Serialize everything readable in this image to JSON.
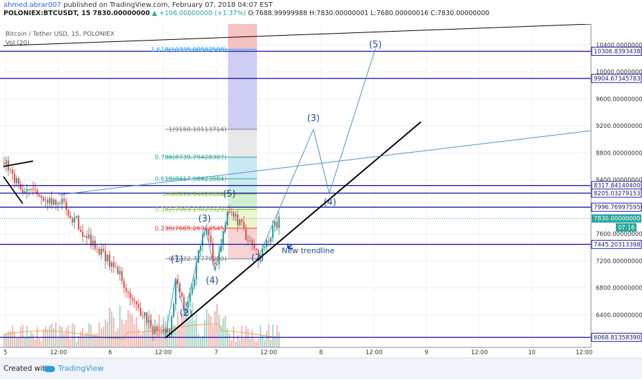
{
  "header": {
    "user": "ahmed.abrar007",
    "published": " published on TradingView.com, February 07, 2018 04:07 EST",
    "symbol_line": "POLONIEX:BTCUSDT, 15  7830.00000000",
    "change": "▲ +106.00000000 (+1.37%)",
    "ohlc": "O:7688.99999988  H:7830.00000001  L:7680.00000016  C:7830.00000000"
  },
  "legend": {
    "title": "Bitcoin / Tether USD, 15, POLONIEX",
    "volume": "Vol (20)"
  },
  "footer": {
    "created": "Created with",
    "brand": "TradingView"
  },
  "colors": {
    "up": "#26a69a",
    "down": "#ef5350",
    "hline": "#1a1aa6",
    "wave": "#4a90c8",
    "trend": "#000000",
    "fib_red": "#e53935",
    "fib_green": "#8bc34a",
    "fib_teal": "#26a69a",
    "fib_blue": "#2196f3",
    "fib_gray": "#787b86"
  },
  "chart_data": {
    "type": "candlestick",
    "y_axis": {
      "range": [
        5920,
        10710
      ],
      "ticks": [
        6400,
        6800,
        7200,
        7600,
        8000,
        8400,
        8800,
        9200,
        9600,
        10000,
        10400
      ],
      "tick_labels": [
        "6400.00000000",
        "6800.00000000",
        "7200.00000000",
        "7600.00000000",
        "8000.00000000",
        "8400.00000000",
        "8800.00000000",
        "9200.00000000",
        "9600.00000000",
        "10000.00000000",
        "10400.00000000"
      ]
    },
    "x_axis": {
      "ticks": [
        "5",
        "12:00",
        "6",
        "12:00",
        "7",
        "12:00",
        "8",
        "12:00",
        "9",
        "12:00",
        "10",
        "12:00"
      ]
    },
    "horizontal_levels": [
      {
        "value": 10306.83934385,
        "label": "10306.83934385"
      },
      {
        "value": 9904.67345783,
        "label": "9904.67345783"
      },
      {
        "value": 8317.841404,
        "label": "8317.84140400"
      },
      {
        "value": 8205.03279153,
        "label": "8205.03279153"
      },
      {
        "value": 7996.76997595,
        "label": "7996.76997595"
      },
      {
        "value": 7445.20313398,
        "label": "7445.20313398"
      },
      {
        "value": 6068.8135839,
        "label": "6068.81358390"
      }
    ],
    "current_price": {
      "value": 7830.0,
      "label": "7830.00000000",
      "countdown": "07:16"
    },
    "fibonacci": [
      {
        "text": "1.618(10335.00587508)",
        "value": 10335.00587508
      },
      {
        "text": "1(9150.10113714)",
        "value": 9150.10113714
      },
      {
        "text": "0.786(8739.79428387)",
        "value": 8739.79428387
      },
      {
        "text": "0.618(8417.68423084)",
        "value": 8417.68423084
      },
      {
        "text": "0.5(8191.14020302)",
        "value": 8191.14020302
      },
      {
        "text": "0.382(7963.19029920)",
        "value": 7963.1902992
      },
      {
        "text": "0.236(7685.26314545)",
        "value": 7685.26314545
      },
      {
        "text": "0(7232.77779290)",
        "value": 7232.7777929
      }
    ],
    "wave_labels": [
      "(1)",
      "(2)",
      "(3)",
      "(4)",
      "(5)",
      "(2)",
      "(3)",
      "(4)",
      "(5)"
    ],
    "annotation": "New trendline",
    "candles_seed": 7830
  }
}
